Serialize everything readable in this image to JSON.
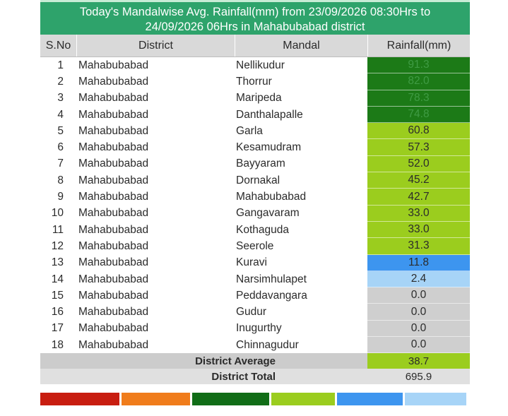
{
  "title_line1": "Today's Mandalwise Avg. Rainfall(mm) from 23/09/2026 08:30Hrs to",
  "title_line2": "24/09/2026 06Hrs in Mahabubabad district",
  "headers": {
    "sno": "S.No",
    "district": "District",
    "mandal": "Mandal",
    "rainfall": "Rainfall(mm)"
  },
  "colors": {
    "title_bg": "#2ea36b",
    "very_heavy": "#0c6b14",
    "heavy": "#1c7a17",
    "moderate": "#9bcd1e",
    "light": "#3d95ef",
    "very_light": "#a7d4f7",
    "no_rain": "#cfcfcf"
  },
  "rows": [
    {
      "sno": "1",
      "district": "Mahabubabad",
      "mandal": "Nellikudur",
      "rainfall": "91.3",
      "category": "heavy"
    },
    {
      "sno": "2",
      "district": "Mahabubabad",
      "mandal": "Thorrur",
      "rainfall": "82.0",
      "category": "heavy"
    },
    {
      "sno": "3",
      "district": "Mahabubabad",
      "mandal": "Maripeda",
      "rainfall": "78.3",
      "category": "heavy"
    },
    {
      "sno": "4",
      "district": "Mahabubabad",
      "mandal": "Danthalapalle",
      "rainfall": "74.8",
      "category": "heavy"
    },
    {
      "sno": "5",
      "district": "Mahabubabad",
      "mandal": "Garla",
      "rainfall": "60.8",
      "category": "moderate"
    },
    {
      "sno": "6",
      "district": "Mahabubabad",
      "mandal": "Kesamudram",
      "rainfall": "57.3",
      "category": "moderate"
    },
    {
      "sno": "7",
      "district": "Mahabubabad",
      "mandal": "Bayyaram",
      "rainfall": "52.0",
      "category": "moderate"
    },
    {
      "sno": "8",
      "district": "Mahabubabad",
      "mandal": "Dornakal",
      "rainfall": "45.2",
      "category": "moderate"
    },
    {
      "sno": "9",
      "district": "Mahabubabad",
      "mandal": "Mahabubabad",
      "rainfall": "42.7",
      "category": "moderate"
    },
    {
      "sno": "10",
      "district": "Mahabubabad",
      "mandal": "Gangavaram",
      "rainfall": "33.0",
      "category": "moderate"
    },
    {
      "sno": "11",
      "district": "Mahabubabad",
      "mandal": "Kothaguda",
      "rainfall": "33.0",
      "category": "moderate"
    },
    {
      "sno": "12",
      "district": "Mahabubabad",
      "mandal": "Seerole",
      "rainfall": "31.3",
      "category": "moderate"
    },
    {
      "sno": "13",
      "district": "Mahabubabad",
      "mandal": "Kuravi",
      "rainfall": "11.8",
      "category": "light"
    },
    {
      "sno": "14",
      "district": "Mahabubabad",
      "mandal": "Narsimhulapet",
      "rainfall": "2.4",
      "category": "very_light"
    },
    {
      "sno": "15",
      "district": "Mahabubabad",
      "mandal": "Peddavangara",
      "rainfall": "0.0",
      "category": "no_rain"
    },
    {
      "sno": "16",
      "district": "Mahabubabad",
      "mandal": "Gudur",
      "rainfall": "0.0",
      "category": "no_rain"
    },
    {
      "sno": "17",
      "district": "Mahabubabad",
      "mandal": "Inugurthy",
      "rainfall": "0.0",
      "category": "no_rain"
    },
    {
      "sno": "18",
      "district": "Mahabubabad",
      "mandal": "Chinnagudur",
      "rainfall": "0.0",
      "category": "no_rain"
    }
  ],
  "summary": {
    "average_label": "District Average",
    "average_value": "38.7",
    "average_category": "moderate",
    "total_label": "District Total",
    "total_value": "695.9"
  },
  "legend": [
    {
      "color": "#c81d10"
    },
    {
      "color": "#f07c1b"
    },
    {
      "color": "#116d17"
    },
    {
      "color": "#9bcd1e"
    },
    {
      "color": "#3d95ef"
    },
    {
      "color": "#a7d4f7"
    }
  ]
}
